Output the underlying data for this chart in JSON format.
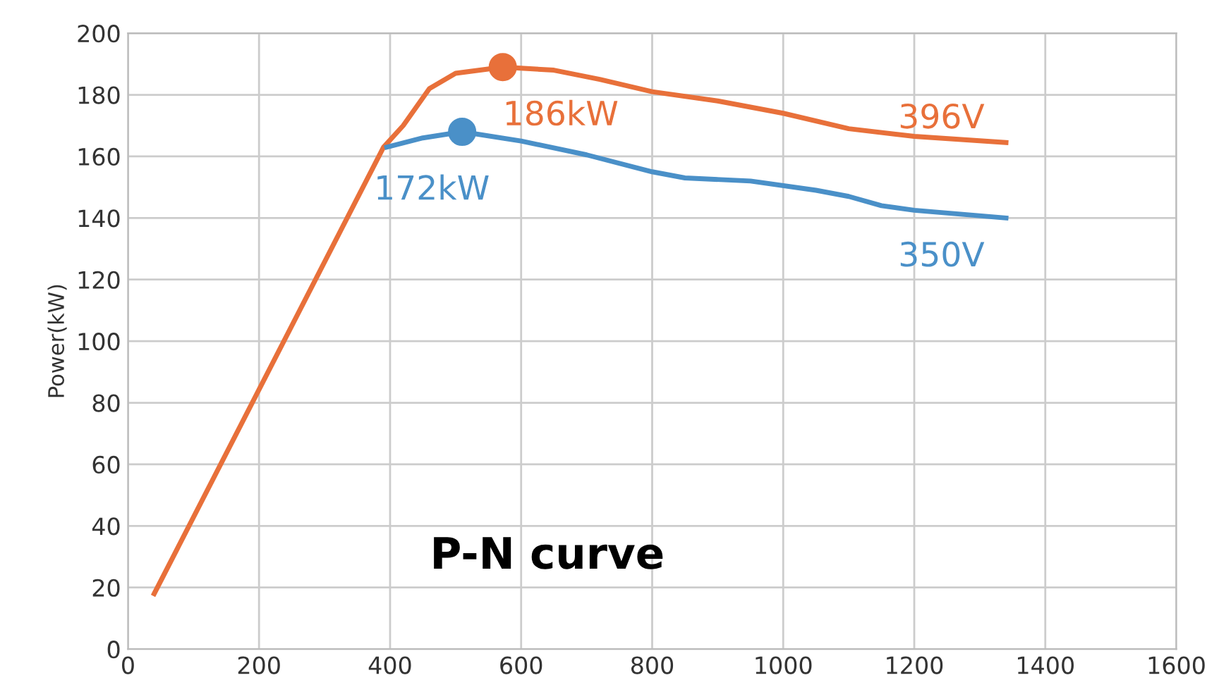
{
  "chart_data": {
    "type": "line",
    "ylabel": "Power(kW)",
    "xlim": [
      0,
      1600
    ],
    "xticks": [
      0,
      200,
      400,
      600,
      800,
      1000,
      1200,
      1400,
      1600
    ],
    "ylim": [
      0,
      200
    ],
    "yticks": [
      0,
      20,
      40,
      60,
      80,
      100,
      120,
      140,
      160,
      180,
      200
    ],
    "grid": true,
    "legend": false,
    "series": [
      {
        "color": "#e8703a",
        "x": [
          40,
          390,
          420,
          460,
          500,
          572,
          650,
          720,
          800,
          900,
          1000,
          1100,
          1200,
          1340
        ],
        "values": [
          18,
          163,
          170,
          182,
          187,
          189,
          188,
          185,
          181,
          178,
          174,
          169,
          166.5,
          164.5
        ]
      },
      {
        "color": "#4a90c8",
        "x": [
          395,
          450,
          510,
          600,
          700,
          800,
          850,
          950,
          1050,
          1100,
          1150,
          1200,
          1340
        ],
        "values": [
          163,
          166,
          168,
          165,
          160.5,
          155,
          153,
          152,
          149,
          147,
          144,
          142.5,
          140
        ]
      },
      {
        "type": "scatter",
        "marker": "circle",
        "color": "#e8703a",
        "x": [
          572
        ],
        "values": [
          189
        ]
      },
      {
        "type": "scatter",
        "marker": "circle",
        "color": "#4a90c8",
        "x": [
          510
        ],
        "values": [
          168
        ]
      }
    ],
    "annotations": [
      {
        "text": "186kW",
        "x": 572,
        "y": 189
      },
      {
        "text": "172kW",
        "x": 510,
        "y": 168
      },
      {
        "text": "396V",
        "x": 1340,
        "y": 164.5
      },
      {
        "text": "350V",
        "x": 1340,
        "y": 140
      },
      "P-N curve"
    ]
  }
}
